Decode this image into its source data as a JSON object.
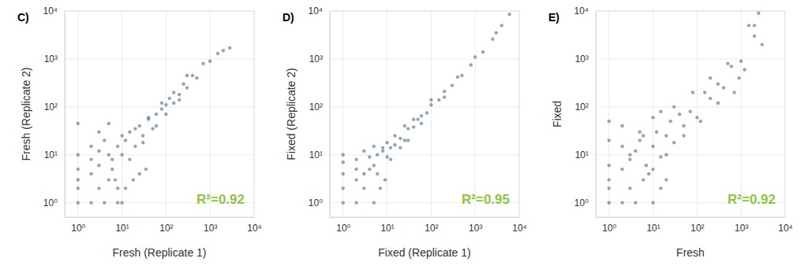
{
  "chart_data": [
    {
      "type": "scatter",
      "title": "C)",
      "x_label": "Fresh (Replicate 1)",
      "y_label": "Fresh (Replicate 2)",
      "annotation": "R²=0.92",
      "log": true,
      "grid": true,
      "color": "#0b3c5d",
      "xlim": [
        0.5,
        10000
      ],
      "ylim": [
        0.5,
        10000
      ],
      "xticks": [
        {
          "value": 1,
          "label": "10⁰"
        },
        {
          "value": 10,
          "label": "10¹"
        },
        {
          "value": 100,
          "label": "10²"
        },
        {
          "value": 1000,
          "label": "10³"
        },
        {
          "value": 10000,
          "label": "10⁴"
        }
      ],
      "yticks": [
        {
          "value": 1,
          "label": "10⁰"
        },
        {
          "value": 10,
          "label": "10¹"
        },
        {
          "value": 100,
          "label": "10²"
        },
        {
          "value": 1000,
          "label": "10³"
        },
        {
          "value": 10000,
          "label": "10⁴"
        }
      ],
      "x": [
        1,
        1,
        1,
        1,
        1,
        2,
        2,
        2,
        3,
        3,
        3,
        4,
        5,
        5,
        6,
        8,
        10,
        1,
        2,
        3,
        4,
        6,
        8,
        10,
        12,
        15,
        20,
        25,
        30,
        40,
        50,
        60,
        80,
        100,
        120,
        150,
        200,
        250,
        300,
        400,
        500,
        700,
        1000,
        1500,
        2000,
        2800,
        5,
        7,
        10,
        15,
        20,
        30,
        40,
        60,
        80,
        100,
        150,
        200,
        300,
        8,
        12,
        18,
        25,
        35
      ],
      "values": [
        1,
        2,
        3,
        5,
        10,
        1,
        4,
        15,
        2,
        6,
        30,
        1,
        3,
        45,
        8,
        2,
        1,
        45,
        8,
        12,
        20,
        5,
        15,
        10,
        20,
        30,
        15,
        40,
        25,
        60,
        35,
        70,
        90,
        110,
        150,
        120,
        180,
        300,
        250,
        450,
        400,
        800,
        900,
        1300,
        1500,
        1700,
        10,
        3,
        25,
        8,
        35,
        18,
        55,
        40,
        120,
        70,
        200,
        140,
        450,
        1,
        2,
        3,
        4,
        5
      ]
    },
    {
      "type": "scatter",
      "title": "D)",
      "x_label": "Fixed (Replicate 1)",
      "y_label": "Fixed (Replicate 2)",
      "annotation": "R²=0.95",
      "log": true,
      "grid": true,
      "color": "#0b3c5d",
      "xlim": [
        0.5,
        10000
      ],
      "ylim": [
        0.5,
        10000
      ],
      "xticks": [
        {
          "value": 1,
          "label": "10⁰"
        },
        {
          "value": 10,
          "label": "10¹"
        },
        {
          "value": 100,
          "label": "10²"
        },
        {
          "value": 1000,
          "label": "10³"
        },
        {
          "value": 10000,
          "label": "10⁴"
        }
      ],
      "yticks": [
        {
          "value": 1,
          "label": "10⁰"
        },
        {
          "value": 10,
          "label": "10¹"
        },
        {
          "value": 100,
          "label": "10²"
        },
        {
          "value": 1000,
          "label": "10³"
        },
        {
          "value": 10000,
          "label": "10⁴"
        }
      ],
      "x": [
        1,
        1,
        1,
        1,
        2,
        2,
        2,
        3,
        3,
        4,
        5,
        1,
        2,
        3,
        4,
        5,
        6,
        8,
        10,
        12,
        15,
        20,
        25,
        30,
        40,
        50,
        60,
        80,
        100,
        150,
        200,
        300,
        400,
        500,
        800,
        1000,
        1500,
        2500,
        3000,
        4000,
        6000,
        6,
        8,
        10,
        12,
        15,
        20,
        25,
        30,
        40,
        60,
        100,
        200,
        5,
        7,
        9
      ],
      "values": [
        1,
        2,
        4,
        10,
        1,
        3,
        8,
        2,
        12,
        5,
        15,
        7,
        5,
        4,
        9,
        6,
        10,
        12,
        9,
        14,
        16,
        22,
        20,
        35,
        38,
        55,
        65,
        75,
        110,
        140,
        210,
        280,
        420,
        450,
        750,
        1100,
        1400,
        2600,
        3500,
        5000,
        8500,
        4,
        14,
        18,
        8,
        25,
        14,
        40,
        20,
        55,
        45,
        140,
        160,
        1,
        2,
        3
      ]
    },
    {
      "type": "scatter",
      "title": "E)",
      "x_label": "Fresh",
      "y_label": "Fixed",
      "annotation": "R²=0.92",
      "log": true,
      "grid": true,
      "color": "#0b3c5d",
      "xlim": [
        0.5,
        10000
      ],
      "ylim": [
        0.5,
        10000
      ],
      "xticks": [
        {
          "value": 1,
          "label": "10⁰"
        },
        {
          "value": 10,
          "label": "10¹"
        },
        {
          "value": 100,
          "label": "10²"
        },
        {
          "value": 1000,
          "label": "10³"
        },
        {
          "value": 10000,
          "label": "10⁴"
        }
      ],
      "yticks": [
        {
          "value": 1,
          "label": "10⁰"
        },
        {
          "value": 10,
          "label": "10¹"
        },
        {
          "value": 100,
          "label": "10²"
        },
        {
          "value": 1000,
          "label": "10³"
        },
        {
          "value": 10000,
          "label": "10⁴"
        }
      ],
      "x": [
        1,
        1,
        1,
        1,
        1,
        2,
        2,
        2,
        3,
        3,
        4,
        5,
        6,
        8,
        10,
        1,
        2,
        3,
        4,
        5,
        7,
        10,
        12,
        15,
        20,
        25,
        30,
        40,
        50,
        70,
        100,
        150,
        200,
        300,
        400,
        600,
        900,
        1000,
        1500,
        2000,
        2500,
        3000,
        6,
        10,
        15,
        20,
        30,
        50,
        80,
        120,
        200,
        300,
        500,
        700,
        1200,
        2000,
        10,
        15,
        20
      ],
      "values": [
        1,
        2,
        3,
        6,
        20,
        1,
        5,
        40,
        2,
        10,
        1,
        30,
        3,
        4,
        60,
        50,
        15,
        8,
        12,
        20,
        6,
        15,
        30,
        9,
        25,
        50,
        18,
        70,
        40,
        80,
        60,
        200,
        150,
        300,
        250,
        700,
        400,
        900,
        5000,
        3000,
        9000,
        2000,
        25,
        5,
        80,
        10,
        100,
        25,
        200,
        50,
        400,
        120,
        800,
        200,
        600,
        5000,
        1,
        2,
        3
      ]
    }
  ]
}
